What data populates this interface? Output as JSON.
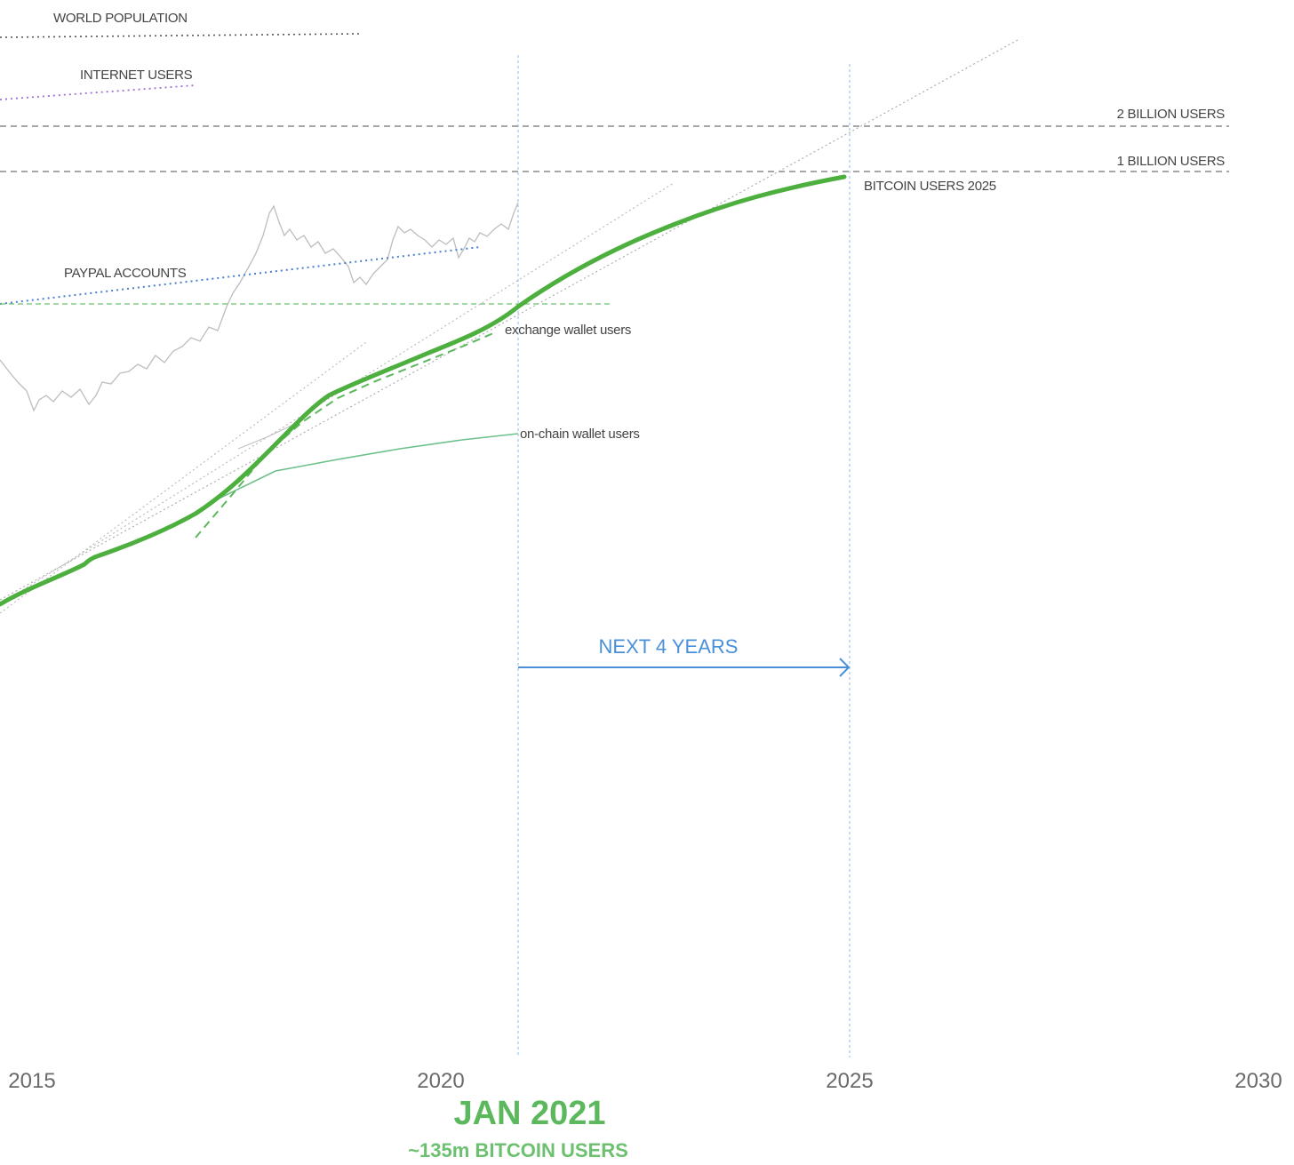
{
  "chart_data": {
    "type": "line",
    "title": "",
    "xlabel": "",
    "ylabel": "",
    "x_ticks": [
      "2015",
      "2020",
      "2025",
      "2030"
    ],
    "xlim": [
      2014.9,
      2030.6
    ],
    "y_scale": "log",
    "reference_lines": [
      {
        "label": "WORLD POPULATION",
        "style": "dotted",
        "color": "#555555"
      },
      {
        "label": "INTERNET USERS",
        "style": "dotted",
        "color": "#a070d0"
      },
      {
        "label": "2 BILLION USERS",
        "value": 2000000000,
        "style": "dashed",
        "color": "#888888"
      },
      {
        "label": "1 BILLION USERS",
        "value": 1000000000,
        "style": "dashed",
        "color": "#888888"
      },
      {
        "label": "PAYPAL ACCOUNTS",
        "style": "dotted",
        "color": "#4a7fd0"
      }
    ],
    "series": [
      {
        "name": "BITCOIN USERS 2025",
        "color": "#4caf3e",
        "x": [
          2014.9,
          2016.1,
          2017.4,
          2018.8,
          2020.0,
          2021.0,
          2022.5,
          2024.9
        ],
        "y": [
          5000000,
          12000000,
          30000000,
          70000000,
          110000000,
          135000000,
          330000000,
          1000000000
        ]
      },
      {
        "name": "exchange wallet users",
        "color": "#5cb85c",
        "style": "dashed",
        "x": [
          2017.3,
          2018.0,
          2018.8,
          2020.0,
          2020.6
        ],
        "y": [
          25000000,
          50000000,
          70000000,
          100000000,
          120000000
        ]
      },
      {
        "name": "on-chain wallet users",
        "color": "#6cc08a",
        "x": [
          2017.5,
          2018.3,
          2019.5,
          2021.0
        ],
        "y": [
          35000000,
          40000000,
          45000000,
          48000000
        ]
      }
    ],
    "annotations": {
      "date": "JAN 2021",
      "users": "~135m BITCOIN USERS",
      "span": "NEXT 4 YEARS"
    }
  }
}
